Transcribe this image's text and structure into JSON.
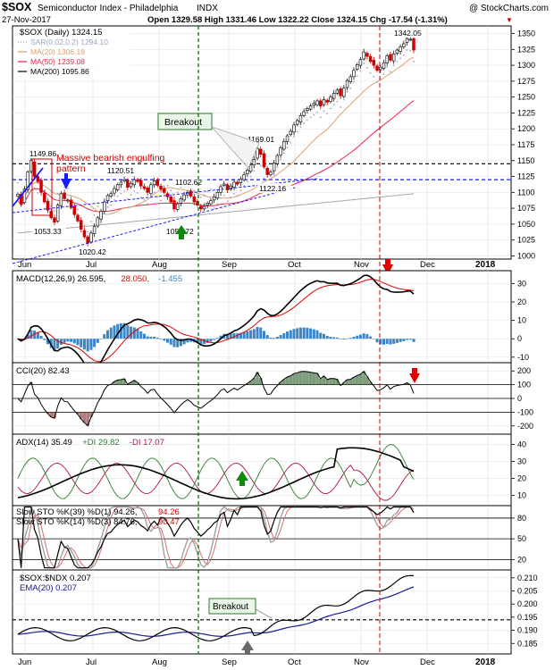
{
  "header": {
    "symbol": "$SOX",
    "name": "Semiconductor Index - Philadelphia",
    "exchange": "INDX",
    "brand": "@ StockCharts.com",
    "date": "27-Nov-2017",
    "ohlc_text": "Open 1329.58  High 1331.46  Low 1322.22  Close 1324.15  Chg -17.54 (-1.31%)",
    "chg_arrow": "▼"
  },
  "colors": {
    "up": "#1a1a1a",
    "down": "#cc0000",
    "ma20": "#e0a070",
    "ma50": "#e8264a",
    "ma200": "#a6a6a6",
    "sar": "#9aa7c2",
    "trend_blue": "#1a1aff",
    "macd_hist": "#3b86c6",
    "cci_fill_pos": "#4f7a4f",
    "cci_fill_neg": "#9a5050",
    "arrow_green": "#0c8a0c",
    "arrow_red": "#e00000",
    "arrow_grey": "#6a6a6a",
    "guide_green": "#006400",
    "guide_red": "#cc0000"
  },
  "x_axis": {
    "labels": [
      "Jun",
      "Jul",
      "Aug",
      "Sep",
      "Oct",
      "Nov",
      "Dec",
      "2018"
    ]
  },
  "chart_data": [
    {
      "panel": "price",
      "type": "candlestick",
      "title": "$SOX (Daily) 1324.15",
      "legend": [
        {
          "label": "SAR(0.02,0.2) 1294.10",
          "color": "#9aa7c2",
          "style": "dot"
        },
        {
          "label": "MA(20) 1306.18",
          "color": "#e0a070",
          "style": "line"
        },
        {
          "label": "MA(50) 1239.08",
          "color": "#e8264a",
          "style": "line"
        },
        {
          "label": "MA(200) 1095.86",
          "color": "#000000",
          "style": "line"
        }
      ],
      "yticks": [
        1000,
        1025,
        1050,
        1075,
        1100,
        1125,
        1150,
        1175,
        1200,
        1225,
        1250,
        1275,
        1300,
        1325,
        1350
      ],
      "ylim": [
        995,
        1362
      ],
      "closes": [
        1097,
        1082,
        1105,
        1132,
        1150,
        1125,
        1117,
        1100,
        1085,
        1072,
        1060,
        1053,
        1080,
        1098,
        1090,
        1088,
        1076,
        1065,
        1055,
        1042,
        1030,
        1020,
        1036,
        1046,
        1060,
        1070,
        1085,
        1095,
        1098,
        1106,
        1112,
        1116,
        1120,
        1108,
        1114,
        1120,
        1117,
        1110,
        1106,
        1100,
        1112,
        1118,
        1111,
        1105,
        1100,
        1093,
        1085,
        1074,
        1082,
        1090,
        1096,
        1100,
        1094,
        1085,
        1080,
        1074,
        1078,
        1083,
        1087,
        1093,
        1100,
        1109,
        1113,
        1104,
        1110,
        1116,
        1113,
        1121,
        1128,
        1135,
        1143,
        1152,
        1169,
        1160,
        1140,
        1128,
        1132,
        1146,
        1158,
        1170,
        1180,
        1189,
        1196,
        1206,
        1213,
        1221,
        1227,
        1232,
        1236,
        1240,
        1244,
        1236,
        1246,
        1242,
        1250,
        1256,
        1261,
        1252,
        1264,
        1276,
        1282,
        1292,
        1301,
        1309,
        1321,
        1314,
        1306,
        1300,
        1292,
        1297,
        1304,
        1315,
        1308,
        1318,
        1324,
        1329,
        1334,
        1342,
        1341,
        1324
      ],
      "annotations": [
        {
          "label": "1149.86",
          "value": 1149.86
        },
        {
          "label": "1053.33",
          "value": 1053.33
        },
        {
          "label": "1020.42",
          "value": 1020.42
        },
        {
          "label": "1120.51",
          "value": 1120.51
        },
        {
          "label": "1102.62",
          "value": 1102.62
        },
        {
          "label": "1057.72",
          "value": 1057.72
        },
        {
          "label": "1169.01",
          "value": 1169.01
        },
        {
          "label": "1122.16",
          "value": 1122.16
        },
        {
          "label": "1342.05",
          "value": 1342.05
        }
      ],
      "text_notes": [
        "Massive bearish engulfing",
        "pattern",
        "Breakout"
      ],
      "hlines": [
        1145,
        1120
      ]
    },
    {
      "panel": "macd",
      "type": "line",
      "title": "MACD(12,26,9) 26.595, 28.050, -1.455",
      "legend": [
        {
          "label": "MACD(12,26,9) 26.595,",
          "color": "#000000"
        },
        {
          "label": "28.050,",
          "color": "#e00000"
        },
        {
          "label": "-1.455",
          "color": "#3b86c6"
        }
      ],
      "yticks": [
        -10,
        0,
        10,
        20,
        30
      ],
      "ylim": [
        -13,
        37
      ]
    },
    {
      "panel": "cci",
      "type": "line",
      "title": "CCI(20) 82.43",
      "yticks": [
        -200,
        -100,
        0,
        100,
        200
      ],
      "ylim": [
        -260,
        260
      ],
      "hlines": [
        100,
        0,
        -100
      ]
    },
    {
      "panel": "adx",
      "type": "line",
      "title": "ADX(14) 35.49 +DI 29.82 -DI 17.07",
      "legend": [
        {
          "label": "ADX(14) 35.49",
          "color": "#000000"
        },
        {
          "label": "+DI 29.82",
          "color": "#2e7d2e"
        },
        {
          "label": "-DI 17.07",
          "color": "#b0134a"
        }
      ],
      "yticks": [
        10,
        20,
        30,
        40
      ],
      "ylim": [
        4,
        46
      ]
    },
    {
      "panel": "stochastics",
      "type": "line",
      "title": "Slow STO %K(39) %D(1) 94.26, 94.26",
      "subtitle": "Slow STO %K(14) %D(3) 84.76, 90.47",
      "legend": [
        {
          "label": "Slow STO %K(39) %D(1) 94.26,",
          "color": "#000000"
        },
        {
          "label": "94.26",
          "color": "#e00000"
        },
        {
          "label": "Slow STO %K(14) %D(3) 84.76,",
          "color": "#000000"
        },
        {
          "label": "90.47",
          "color": "#e00000"
        }
      ],
      "yticks": [
        20,
        50,
        80
      ],
      "ylim": [
        5,
        98
      ],
      "hlines": [
        80,
        50,
        20
      ]
    },
    {
      "panel": "ratio",
      "type": "line",
      "title": "$SOX:$NDX 0.207",
      "legend": [
        {
          "label": "$SOX:$NDX 0.207",
          "color": "#000000"
        },
        {
          "label": "EMA(20) 0.207",
          "color": "#1a1a9a"
        }
      ],
      "yticks": [
        0.185,
        0.19,
        0.195,
        0.2,
        0.205,
        0.21
      ],
      "ylim": [
        0.181,
        0.213
      ],
      "hlines": [
        0.194
      ],
      "text_notes": [
        "Breakout"
      ]
    }
  ]
}
